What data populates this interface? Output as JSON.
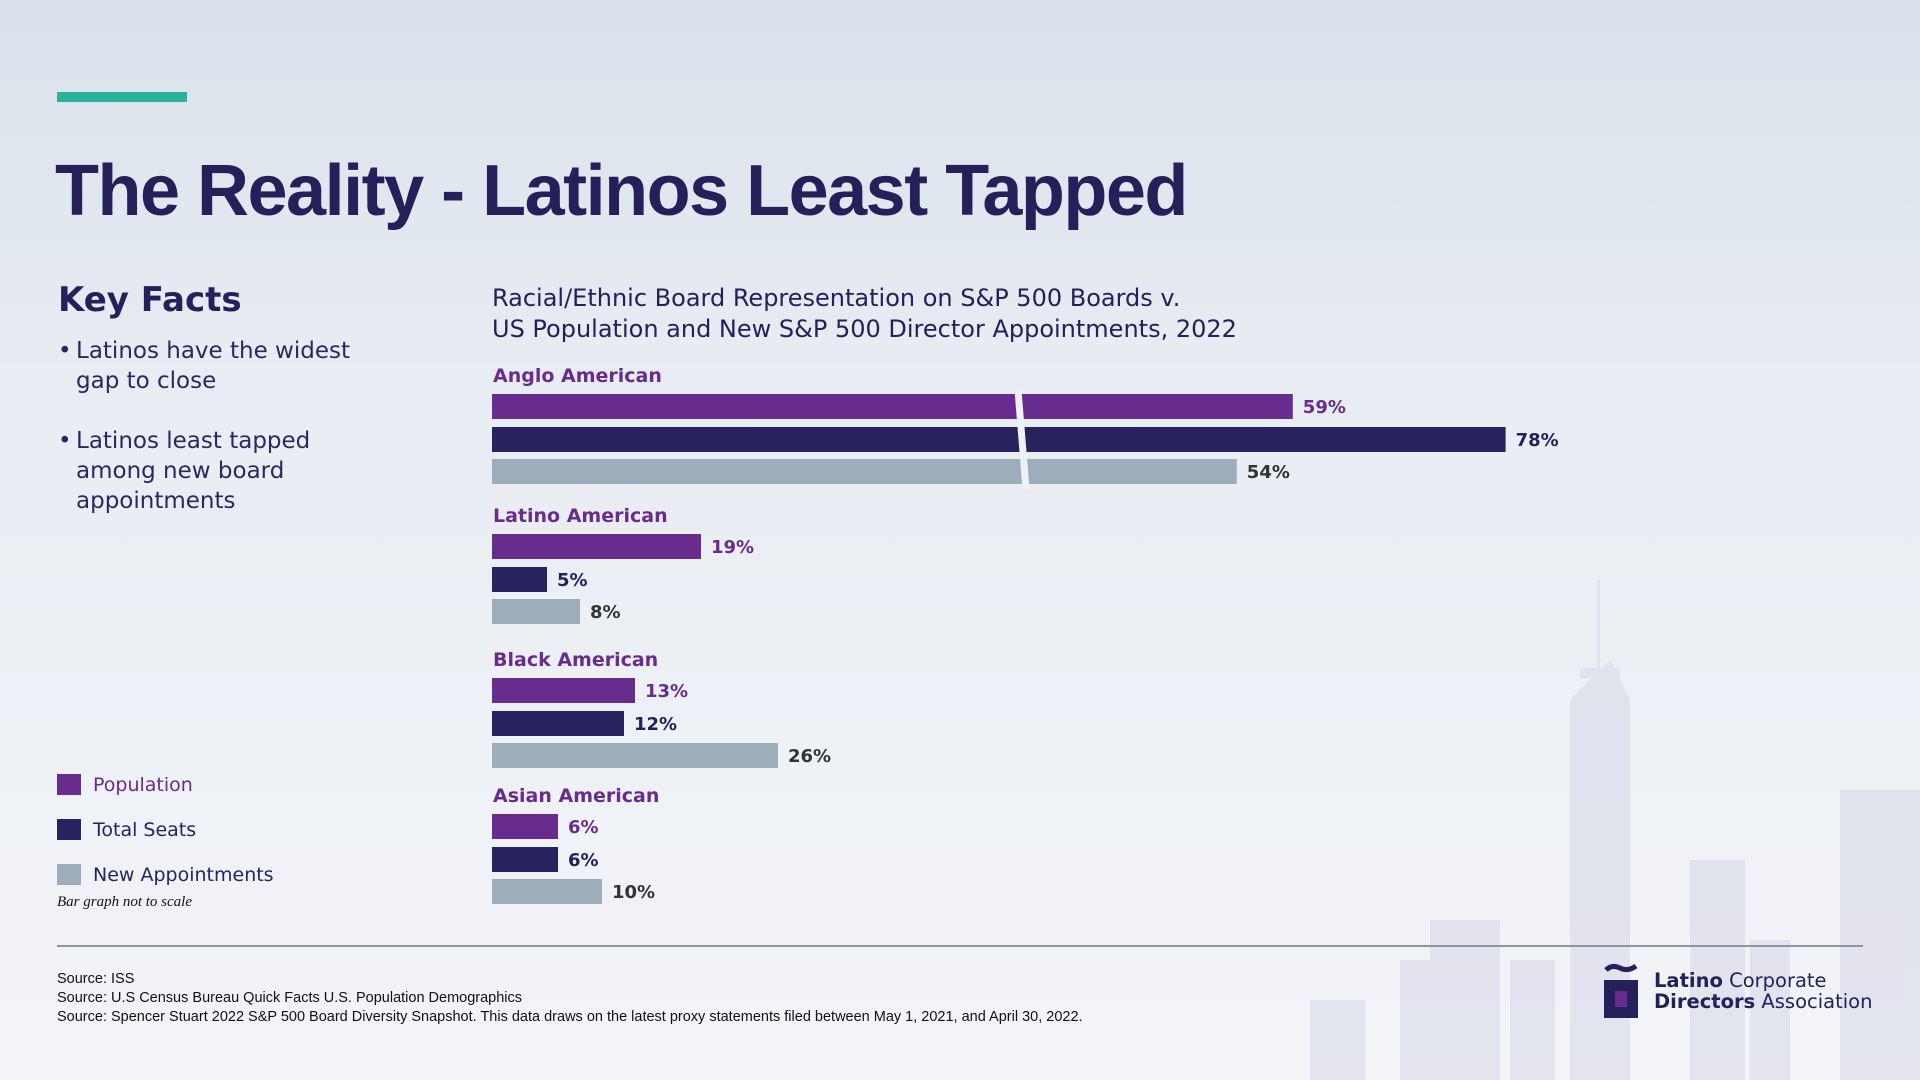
{
  "page": {
    "title": "The Reality - Latinos Least Tapped",
    "accent_color": "#2ab39a"
  },
  "key_facts": {
    "heading": "Key Facts",
    "bullets": [
      "Latinos have the widest gap to close",
      "Latinos least tapped among new board appointments"
    ]
  },
  "chart_data": {
    "type": "bar",
    "orientation": "horizontal",
    "title_lines": [
      "Racial/Ethnic Board Representation on S&P 500 Boards v.",
      "US Population and New S&P 500 Director Appointments, 2022"
    ],
    "categories": [
      "Anglo American",
      "Latino American",
      "Black American",
      "Asian American"
    ],
    "series": [
      {
        "name": "Population",
        "color": "#672c8e",
        "values": [
          59,
          19,
          13,
          6
        ]
      },
      {
        "name": "Total Seats",
        "color": "#27235e",
        "values": [
          78,
          5,
          12,
          6
        ]
      },
      {
        "name": "New Appointments",
        "color": "#9eadba",
        "values": [
          54,
          8,
          26,
          10
        ]
      }
    ],
    "value_suffix": "%",
    "axis_break_category": "Anglo American",
    "note": "Bar graph not to scale"
  },
  "legend": {
    "items": [
      {
        "label": "Population",
        "color": "#672c8e"
      },
      {
        "label": "Total Seats",
        "color": "#27235e"
      },
      {
        "label": "New Appointments",
        "color": "#9eadba"
      }
    ]
  },
  "sources": [
    "Source: ISS",
    "Source: U.S Census Bureau Quick Facts U.S. Population Demographics",
    "Source: Spencer Stuart 2022 S&P 500 Board Diversity Snapshot. This data draws on the latest proxy statements filed between May 1, 2021, and April 30, 2022."
  ],
  "logo": {
    "line1_bold": "Latino",
    "line1_rest": "Corporate",
    "line2_bold": "Directors",
    "line2_rest": "Association"
  }
}
